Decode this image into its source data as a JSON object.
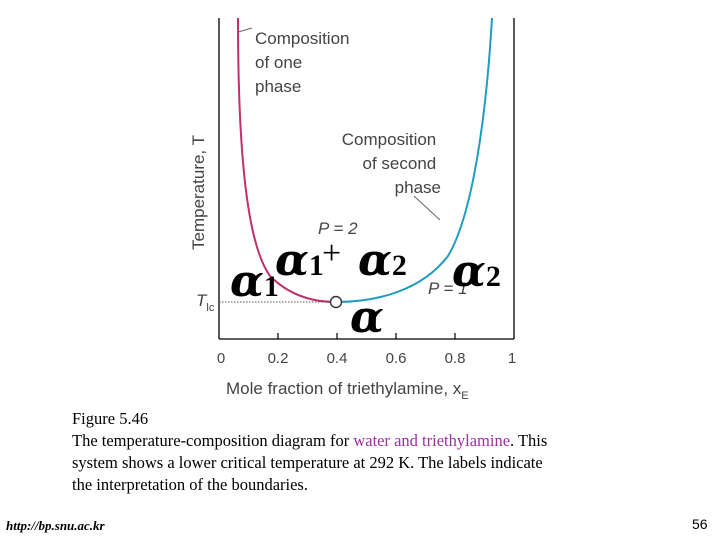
{
  "diagram": {
    "y_axis_label": "Temperature, T",
    "x_axis_label": "Mole fraction of triethylamine, x",
    "x_axis_label_sub": "E",
    "x_ticks": [
      "0",
      "0.2",
      "0.4",
      "0.6",
      "0.8",
      "1"
    ],
    "tlc_label": "T",
    "tlc_sub": "lc",
    "label_one_phase": [
      "Composition",
      "of one",
      "phase"
    ],
    "label_second_phase": [
      "Composition",
      "of second",
      "phase"
    ],
    "p2_label": "P = 2",
    "p1_label": "P = 1",
    "colors": {
      "left_branch": "#c0306a",
      "right_branch": "#1f9cc0",
      "frame": "#000000"
    }
  },
  "overlay": {
    "alpha": "α",
    "sub1": "1",
    "sub2": "2",
    "plus": "+"
  },
  "caption": {
    "title": "Figure 5.46",
    "line1_pre": "The temperature-composition diagram for ",
    "line1_highlight": "water and triethylamine",
    "line1_post": ". This",
    "line2": "system shows a lower critical temperature at 292 K.  The labels indicate",
    "line3": "the interpretation of the boundaries."
  },
  "footer": {
    "url": "http://bp.snu.ac.kr",
    "page_number": "56"
  }
}
